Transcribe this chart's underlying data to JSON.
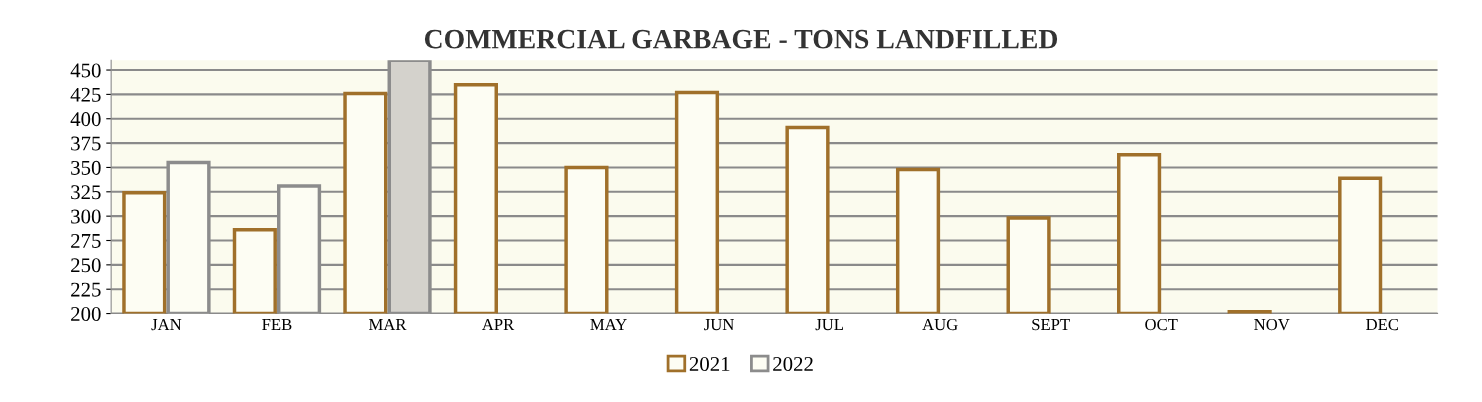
{
  "chart_data": {
    "type": "bar",
    "title": "COMMERCIAL GARBAGE - TONS LANDFILLED",
    "categories": [
      "JAN",
      "FEB",
      "MAR",
      "APR",
      "MAY",
      "JUN",
      "JUL",
      "AUG",
      "SEPT",
      "OCT",
      "NOV",
      "DEC"
    ],
    "series": [
      {
        "name": "2021",
        "color": "#a0702a",
        "colors": [
          "#fdfdf3",
          "#fdfdf3",
          "#fdfdf3",
          "#fdfdf3",
          "#fdfdf3",
          "#fdfdf3",
          "#fdfdf3",
          "#fdfdf3",
          "#fdfdf3",
          "#fdfdf3",
          "#fdfdf3",
          "#fdfdf3"
        ],
        "values": [
          324,
          286,
          426,
          435,
          350,
          427,
          391,
          348,
          298,
          363,
          202,
          339
        ]
      },
      {
        "name": "2022",
        "color": "#8c8c8c",
        "colors": [
          "#fdfdf3",
          "#fdfdf3",
          "#d4d2cc",
          "#fdfdf3",
          "#fdfdf3",
          "#fdfdf3",
          "#fdfdf3",
          "#fdfdf3",
          "#fdfdf3",
          "#fdfdf3",
          "#fdfdf3",
          "#fdfdf3"
        ],
        "values": [
          355,
          331,
          460,
          null,
          null,
          null,
          null,
          null,
          null,
          null,
          null,
          null
        ]
      }
    ],
    "ylim": [
      200,
      460
    ],
    "yticks": [
      200,
      225,
      250,
      275,
      300,
      325,
      350,
      375,
      400,
      425,
      450
    ],
    "grid": "y",
    "legend": "bottom"
  }
}
